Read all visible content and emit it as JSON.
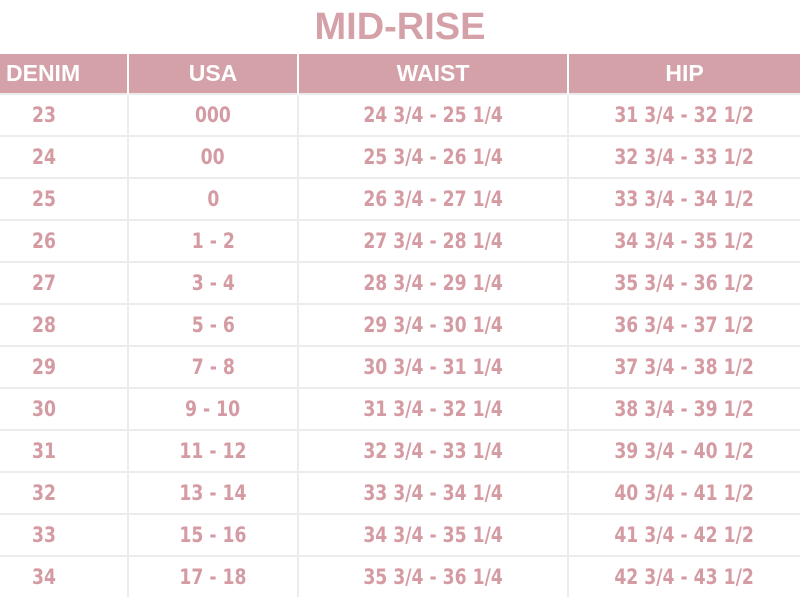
{
  "title": "MID-RISE",
  "colors": {
    "accent": "#d4a1a8",
    "header_text": "#ffffff",
    "cell_text": "#d49ba3",
    "grid": "#ececec"
  },
  "table": {
    "headers": [
      "DENIM",
      "USA",
      "WAIST",
      "HIP"
    ],
    "rows": [
      [
        "23",
        "000",
        "24 3/4 - 25 1/4",
        "31 3/4 - 32 1/2"
      ],
      [
        "24",
        "00",
        "25 3/4 - 26 1/4",
        "32 3/4 - 33 1/2"
      ],
      [
        "25",
        "0",
        "26 3/4 - 27 1/4",
        "33 3/4 - 34 1/2"
      ],
      [
        "26",
        "1 - 2",
        "27 3/4 - 28 1/4",
        "34 3/4 - 35 1/2"
      ],
      [
        "27",
        "3 - 4",
        "28 3/4 - 29 1/4",
        "35 3/4 - 36 1/2"
      ],
      [
        "28",
        "5 - 6",
        "29 3/4 - 30 1/4",
        "36 3/4 - 37 1/2"
      ],
      [
        "29",
        "7 - 8",
        "30 3/4 - 31 1/4",
        "37 3/4 - 38 1/2"
      ],
      [
        "30",
        "9 - 10",
        "31 3/4 - 32 1/4",
        "38 3/4 - 39 1/2"
      ],
      [
        "31",
        "11 - 12",
        "32 3/4 - 33 1/4",
        "39 3/4 - 40 1/2"
      ],
      [
        "32",
        "13 - 14",
        "33 3/4 - 34 1/4",
        "40 3/4 - 41 1/2"
      ],
      [
        "33",
        "15 - 16",
        "34 3/4 - 35 1/4",
        "41 3/4 - 42 1/2"
      ],
      [
        "34",
        "17 - 18",
        "35 3/4 - 36 1/4",
        "42 3/4 - 43 1/2"
      ]
    ]
  }
}
